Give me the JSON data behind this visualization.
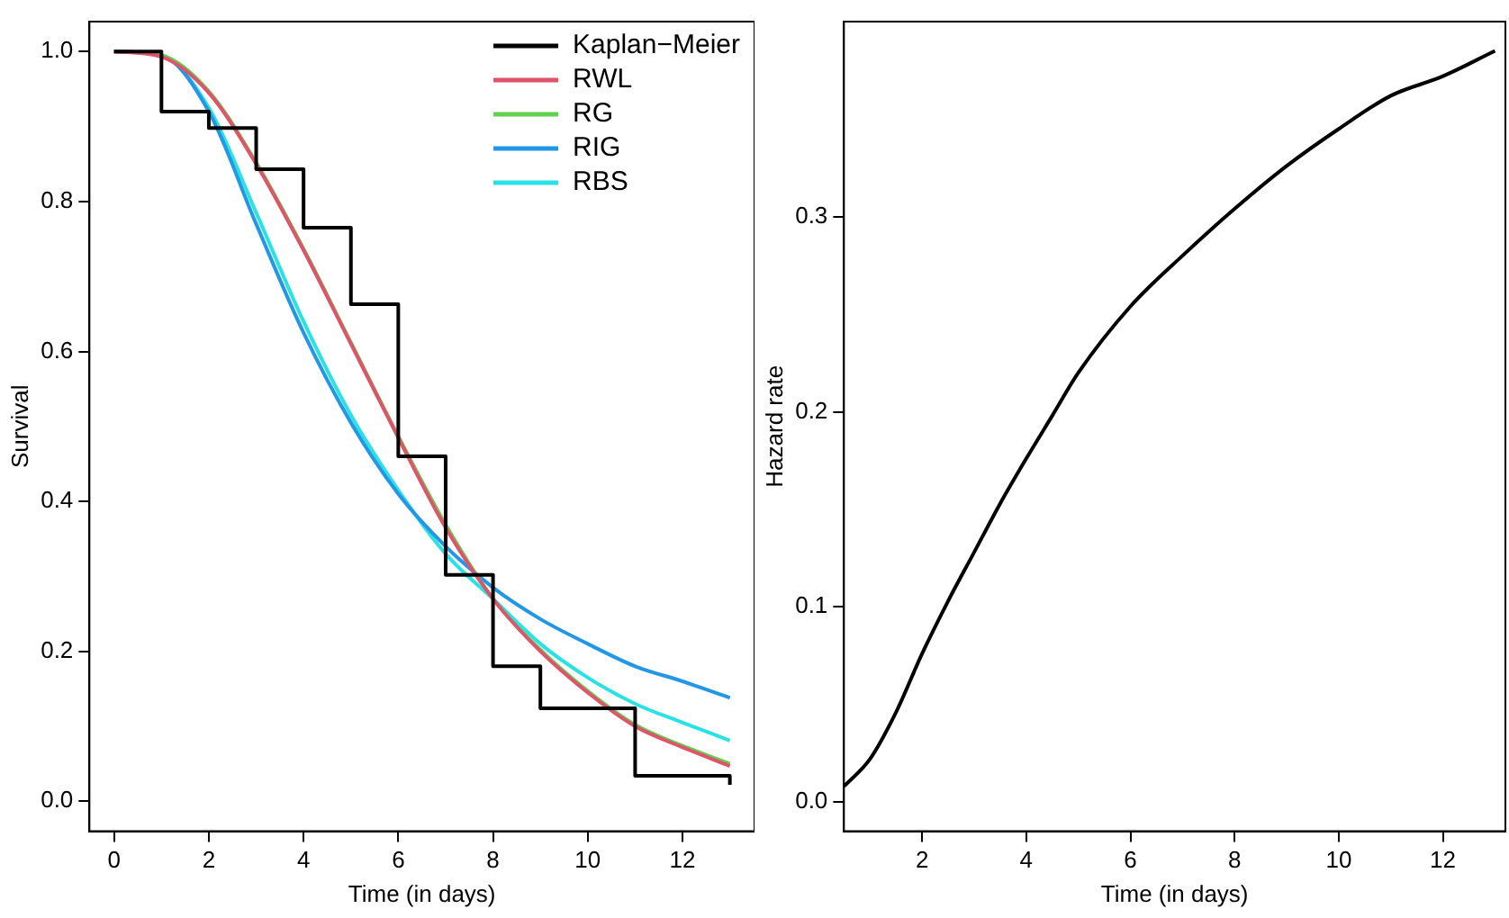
{
  "chart_data": [
    {
      "type": "line",
      "xlabel": "Time (in days)",
      "ylabel": "Survival",
      "xlim": [
        -0.52,
        13.52
      ],
      "ylim": [
        -0.04,
        1.04
      ],
      "xticks": [
        0,
        2,
        4,
        6,
        8,
        10,
        12
      ],
      "yticks": [
        {
          "value": 0,
          "label": "0.0"
        },
        {
          "value": 0.2,
          "label": "0.2"
        },
        {
          "value": 0.4,
          "label": "0.4"
        },
        {
          "value": 0.6,
          "label": "0.6"
        },
        {
          "value": 0.8,
          "label": "0.8"
        },
        {
          "value": 1,
          "label": "1.0"
        }
      ],
      "grid": false,
      "legend": "top right",
      "marker": "none",
      "line_style": "solid",
      "series": [
        {
          "name": "Kaplan−Meier",
          "type": "step",
          "color": "#000000",
          "x": [
            0,
            1,
            2,
            3,
            4,
            5,
            6,
            7,
            8,
            9,
            11,
            13,
            13
          ],
          "values": [
            1.0,
            0.92,
            0.898,
            0.843,
            0.765,
            0.663,
            0.46,
            0.302,
            0.18,
            0.124,
            0.034,
            0.034,
            0.022
          ]
        },
        {
          "name": "RWL",
          "color": "#df536b",
          "x": [
            0,
            1,
            2,
            3,
            4,
            5,
            6,
            7,
            8,
            9,
            10,
            11,
            12,
            13
          ],
          "values": [
            1.0,
            0.993,
            0.945,
            0.85,
            0.735,
            0.61,
            0.485,
            0.365,
            0.27,
            0.2,
            0.145,
            0.1,
            0.072,
            0.047
          ]
        },
        {
          "name": "RG",
          "color": "#61d04f",
          "x": [
            0,
            1,
            2,
            3,
            4,
            5,
            6,
            7,
            8,
            9,
            10,
            11,
            12,
            13
          ],
          "values": [
            1.0,
            0.995,
            0.947,
            0.852,
            0.737,
            0.612,
            0.487,
            0.369,
            0.27,
            0.202,
            0.147,
            0.102,
            0.074,
            0.05
          ]
        },
        {
          "name": "RIG",
          "color": "#2297e6",
          "x": [
            0,
            1,
            2,
            3,
            4,
            5,
            6,
            7,
            8,
            9,
            10,
            11,
            12,
            13
          ],
          "values": [
            1.0,
            0.995,
            0.92,
            0.77,
            0.625,
            0.505,
            0.41,
            0.34,
            0.285,
            0.243,
            0.21,
            0.18,
            0.16,
            0.138
          ]
        },
        {
          "name": "RBS",
          "color": "#28e2e5",
          "x": [
            0,
            1,
            2,
            3,
            4,
            5,
            6,
            7,
            8,
            9,
            10,
            11,
            12,
            13
          ],
          "values": [
            1.0,
            0.995,
            0.925,
            0.785,
            0.64,
            0.515,
            0.415,
            0.33,
            0.27,
            0.21,
            0.165,
            0.13,
            0.105,
            0.081
          ]
        }
      ]
    },
    {
      "type": "line",
      "xlabel": "Time (in days)",
      "ylabel": "Hazard rate",
      "xlim": [
        0.5,
        13.2
      ],
      "ylim": [
        -0.015,
        0.4
      ],
      "xticks": [
        2,
        4,
        6,
        8,
        10,
        12
      ],
      "yticks": [
        {
          "value": 0,
          "label": "0.0"
        },
        {
          "value": 0.1,
          "label": "0.1"
        },
        {
          "value": 0.2,
          "label": "0.2"
        },
        {
          "value": 0.3,
          "label": "0.3"
        }
      ],
      "grid": false,
      "legend": false,
      "marker": "none",
      "line_style": "solid",
      "series": [
        {
          "color": "#000000",
          "x": [
            0.5,
            1,
            1.5,
            2,
            2.5,
            3,
            3.5,
            4,
            4.5,
            5,
            6,
            7,
            8,
            9,
            10,
            11,
            12,
            13
          ],
          "values": [
            0.008,
            0.022,
            0.046,
            0.076,
            0.103,
            0.128,
            0.153,
            0.176,
            0.198,
            0.22,
            0.254,
            0.28,
            0.304,
            0.326,
            0.345,
            0.362,
            0.372,
            0.385
          ]
        }
      ]
    }
  ]
}
